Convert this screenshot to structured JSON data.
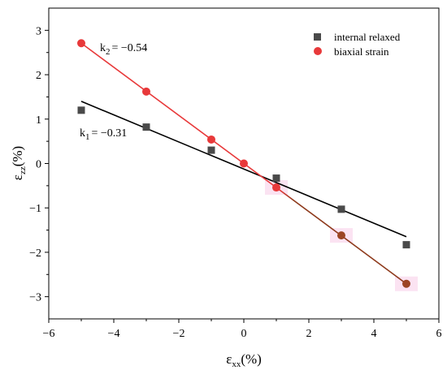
{
  "chart_data": {
    "type": "scatter",
    "xlim": [
      -6,
      6
    ],
    "ylim": [
      -3.5,
      3.5
    ],
    "x_ticks": [
      "−6",
      "−4",
      "−2",
      "0",
      "2",
      "4",
      "6"
    ],
    "y_ticks": [
      "3",
      "2",
      "1",
      "0",
      "−1",
      "−2",
      "−3"
    ],
    "x_tick_values": [
      -6,
      -4,
      -2,
      0,
      2,
      4,
      6
    ],
    "y_tick_values": [
      3,
      2,
      1,
      0,
      -1,
      -2,
      -3
    ],
    "xlabel": {
      "main": "ε",
      "sub": "xx",
      "unit": "(%)"
    },
    "ylabel": {
      "main": "ε",
      "sub": "zz",
      "unit": "(%)"
    },
    "grid": false,
    "legend_position": "top-right",
    "series": [
      {
        "name": "internal relaxed",
        "marker": "square",
        "color": "#4a4a4a",
        "x": [
          -5,
          -3,
          -1,
          1,
          3,
          5
        ],
        "y": [
          1.2,
          0.82,
          0.3,
          -0.33,
          -1.03,
          -1.83
        ],
        "fit": {
          "x": [
            -5,
            5
          ],
          "y": [
            1.4,
            -1.65
          ],
          "color": "#000000",
          "label_prefix": "k",
          "label_sub": "1",
          "label_value": "= −0.31"
        }
      },
      {
        "name": "biaxial strain",
        "marker": "circle",
        "color": "#e8393a",
        "x": [
          -5,
          -3,
          -1,
          0,
          1,
          3,
          5
        ],
        "y": [
          2.71,
          1.62,
          0.54,
          0.0,
          -0.54,
          -1.62,
          -2.71
        ],
        "fit": {
          "x": [
            -5,
            5
          ],
          "y": [
            2.71,
            -2.71
          ],
          "color": "#e8393a",
          "label_prefix": "k",
          "label_sub": "2",
          "label_value": "= −0.54"
        }
      }
    ]
  }
}
